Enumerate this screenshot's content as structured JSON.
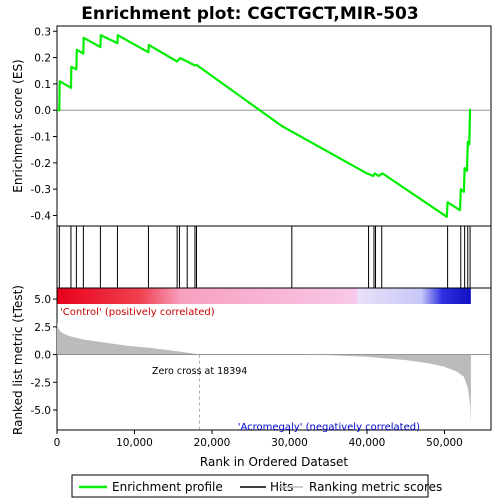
{
  "chart_data": {
    "type": "line",
    "title": "Enrichment plot: CGCTGCT,MIR-503",
    "xlabel": "Rank in Ordered Dataset",
    "panels": {
      "enrichment": {
        "ylabel": "Enrichment score (ES)",
        "ylim": [
          -0.44,
          0.32
        ],
        "yticks": [
          "0.3",
          "0.2",
          "0.1",
          "0.0",
          "-0.1",
          "-0.2",
          "-0.3",
          "-0.4"
        ],
        "ytick_values": [
          0.3,
          0.2,
          0.1,
          0.0,
          -0.1,
          -0.2,
          -0.3,
          -0.4
        ],
        "series": [
          {
            "name": "Enrichment profile",
            "color": "#00ee00",
            "x": [
              0,
              300,
              350,
              1800,
              1850,
              2500,
              2550,
              3400,
              3450,
              5600,
              5650,
              7800,
              7850,
              11800,
              11850,
              15500,
              15800,
              15900,
              16800,
              17800,
              18000,
              29000,
              40000,
              40800,
              41000,
              41500,
              42000,
              50300,
              50400,
              52000,
              52100,
              52500,
              52600,
              52900,
              53000,
              53200,
              53300
            ],
            "y": [
              0.0,
              0.0,
              0.11,
              0.085,
              0.165,
              0.155,
              0.23,
              0.215,
              0.275,
              0.24,
              0.285,
              0.255,
              0.285,
              0.22,
              0.248,
              0.185,
              0.195,
              0.198,
              0.185,
              0.17,
              0.172,
              -0.06,
              -0.24,
              -0.25,
              -0.24,
              -0.25,
              -0.24,
              -0.405,
              -0.35,
              -0.38,
              -0.3,
              -0.31,
              -0.22,
              -0.23,
              -0.12,
              -0.13,
              0.005
            ]
          }
        ]
      },
      "hits": {
        "positions": [
          300,
          1800,
          2500,
          3400,
          5600,
          7800,
          11800,
          15500,
          15800,
          16800,
          17800,
          18000,
          30300,
          40200,
          40900,
          41100,
          41900,
          50400,
          52100,
          52600,
          53000,
          53300
        ]
      },
      "ranked_metric": {
        "ylabel": "Ranked list metric (tTest)",
        "ylim": [
          -6.8,
          6.0
        ],
        "yticks": [
          "5.0",
          "2.5",
          "0.0",
          "-2.5",
          "-5.0"
        ],
        "ytick_values": [
          5.0,
          2.5,
          0.0,
          -2.5,
          -5.0
        ],
        "x": [
          0,
          150,
          400,
          800,
          1500,
          2500,
          3500,
          5000,
          7000,
          9000,
          12000,
          15000,
          17000,
          18394,
          25000,
          35000,
          40000,
          45000,
          48000,
          50000,
          51500,
          52500,
          53000,
          53300,
          53400
        ],
        "y": [
          2.9,
          2.4,
          2.1,
          1.9,
          1.7,
          1.5,
          1.35,
          1.2,
          1.0,
          0.8,
          0.6,
          0.35,
          0.15,
          0.0,
          -0.02,
          -0.05,
          -0.2,
          -0.5,
          -0.8,
          -1.1,
          -1.5,
          -2.0,
          -3.0,
          -4.5,
          -6.4
        ],
        "zero_cross_label": "Zero cross at 18394",
        "zero_cross": 18394,
        "pos_label": "'Control' (positively correlated)",
        "neg_label": "'Acromegaly' (negatively correlated)"
      }
    },
    "xlim": [
      0,
      56000
    ],
    "xticks": [
      "0",
      "10,000",
      "20,000",
      "30,000",
      "40,000",
      "50,000"
    ],
    "xtick_values": [
      0,
      10000,
      20000,
      30000,
      40000,
      50000
    ],
    "bar_max": 53400
  },
  "legend": {
    "items": [
      {
        "label": "Enrichment profile",
        "color": "#00ee00"
      },
      {
        "label": "Hits",
        "color": "#000000"
      },
      {
        "label": "Ranking metric scores",
        "color": "#bbbbbb"
      }
    ]
  }
}
